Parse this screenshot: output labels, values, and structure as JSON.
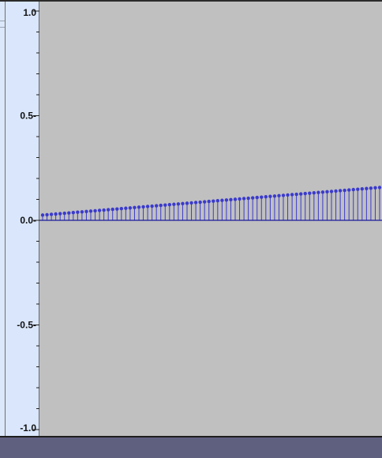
{
  "vertical_ruler": {
    "ticks": [
      {
        "value": 1.0,
        "label": "1.0"
      },
      {
        "value": 0.5,
        "label": "0.5-"
      },
      {
        "value": 0.0,
        "label": "0.0-"
      },
      {
        "value": -0.5,
        "label": "-0.5-"
      },
      {
        "value": -1.0,
        "label": "-1.0"
      }
    ],
    "minor_ticks": [
      0.9,
      0.8,
      0.7,
      0.6,
      0.4,
      0.3,
      0.2,
      0.1,
      -0.1,
      -0.2,
      -0.3,
      -0.4,
      -0.6,
      -0.7,
      -0.8,
      -0.9
    ]
  },
  "chart_data": {
    "type": "scatter",
    "style": "stem",
    "title": "",
    "xlabel": "",
    "ylabel": "",
    "ylim": [
      -1.0,
      1.0
    ],
    "series": [
      {
        "start": 0.025,
        "end": 0.157,
        "count": 78
      }
    ]
  },
  "colors": {
    "track_background": "#c0c0c0",
    "ruler_background": "#d9e6fb",
    "stem": "#3a3acd",
    "baseline": "#1a1a9a",
    "bottom_bar": "#5f6080"
  }
}
